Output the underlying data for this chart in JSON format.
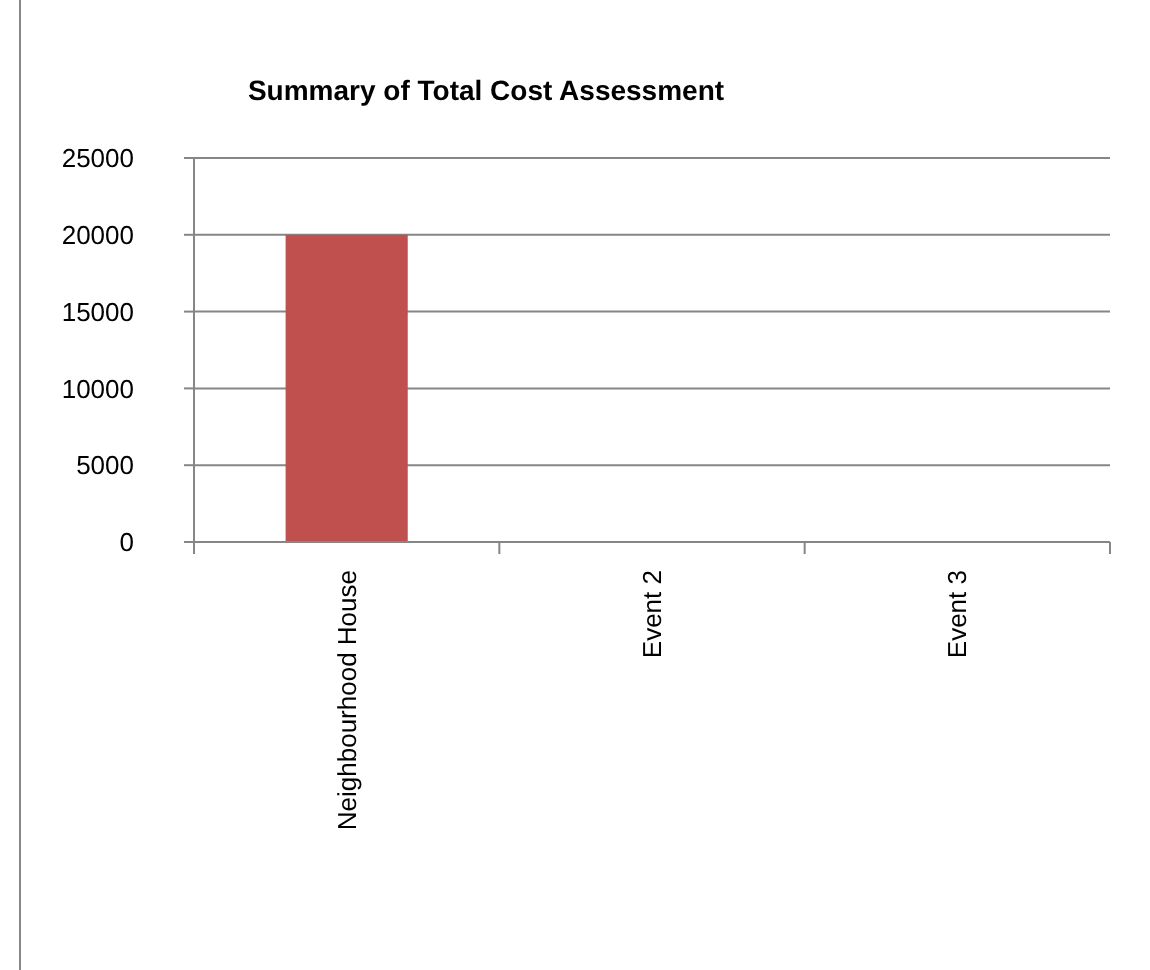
{
  "chart_data": {
    "type": "bar",
    "title": "Summary of Total Cost Assessment",
    "categories": [
      "Neighbourhood House",
      "Event 2",
      "Event 3"
    ],
    "values": [
      20000,
      0,
      0
    ],
    "color": "#c0504d",
    "ylim": [
      0,
      25000
    ],
    "yticks": [
      0,
      5000,
      10000,
      15000,
      20000,
      25000
    ],
    "grid": "y"
  }
}
